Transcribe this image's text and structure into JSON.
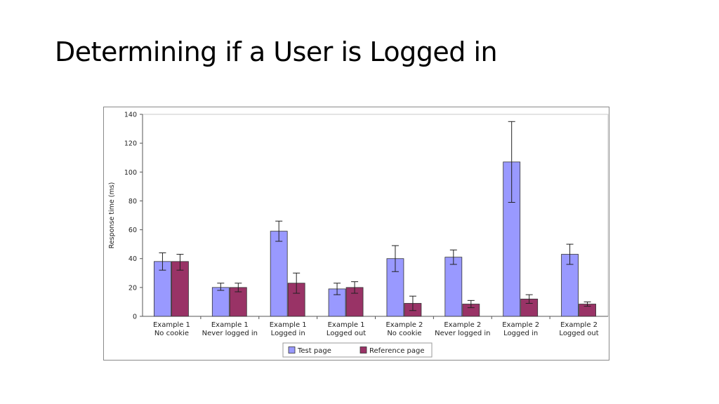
{
  "slide": {
    "title": "Determining if a User is Logged in"
  },
  "chart_data": {
    "type": "bar",
    "ylabel": "Response time (ms)",
    "xlabel": "",
    "ylim": [
      0,
      140
    ],
    "yticks": [
      0,
      20,
      40,
      60,
      80,
      100,
      120,
      140
    ],
    "grid": false,
    "legend_position": "bottom-center",
    "categories": [
      [
        "Example 1",
        "No cookie"
      ],
      [
        "Example 1",
        "Never logged in"
      ],
      [
        "Example 1",
        "Logged in"
      ],
      [
        "Example 1",
        "Logged out"
      ],
      [
        "Example 2",
        "No cookie"
      ],
      [
        "Example 2",
        "Never logged in"
      ],
      [
        "Example 2",
        "Logged in"
      ],
      [
        "Example 2",
        "Logged out"
      ]
    ],
    "series": [
      {
        "name": "Test page",
        "color": "#9999ff",
        "values": [
          38,
          20,
          59,
          19,
          40,
          41,
          107,
          43
        ],
        "err_low": [
          32,
          18,
          52,
          15,
          31,
          36,
          79,
          36
        ],
        "err_high": [
          44,
          23,
          66,
          23,
          49,
          46,
          135,
          50
        ]
      },
      {
        "name": "Reference page",
        "color": "#993366",
        "values": [
          38,
          20,
          23,
          20,
          9,
          8.5,
          12,
          8.5
        ],
        "err_low": [
          32,
          17,
          16,
          16,
          4,
          6,
          9,
          7
        ],
        "err_high": [
          43,
          23,
          30,
          24,
          14,
          11,
          15,
          10
        ]
      }
    ]
  }
}
